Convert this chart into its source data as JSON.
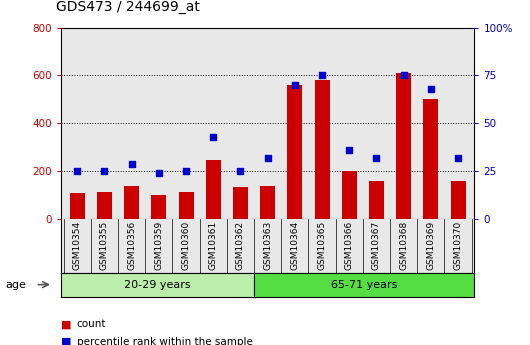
{
  "title": "GDS473 / 244699_at",
  "samples": [
    "GSM10354",
    "GSM10355",
    "GSM10356",
    "GSM10359",
    "GSM10360",
    "GSM10361",
    "GSM10362",
    "GSM10363",
    "GSM10364",
    "GSM10365",
    "GSM10366",
    "GSM10367",
    "GSM10368",
    "GSM10369",
    "GSM10370"
  ],
  "counts": [
    110,
    115,
    140,
    100,
    115,
    245,
    135,
    140,
    560,
    580,
    200,
    160,
    610,
    500,
    160
  ],
  "percentiles": [
    25,
    25,
    29,
    24,
    25,
    43,
    25,
    32,
    70,
    75,
    36,
    32,
    75,
    68,
    32
  ],
  "group1_label": "20-29 years",
  "group2_label": "65-71 years",
  "group1_count": 7,
  "group2_count": 8,
  "left_ylim": [
    0,
    800
  ],
  "right_ylim": [
    0,
    100
  ],
  "left_yticks": [
    0,
    200,
    400,
    600,
    800
  ],
  "right_yticks": [
    0,
    25,
    50,
    75,
    100
  ],
  "bar_color": "#cc0000",
  "dot_color": "#0000cc",
  "age_label": "age",
  "legend_count": "count",
  "legend_percentile": "percentile rank within the sample",
  "group1_bg": "#bbeeaa",
  "group2_bg": "#55dd44",
  "axes_bg": "#e8e8e8",
  "grid_color": "#000000",
  "left_tick_color": "#cc0000",
  "right_tick_color": "#0000cc"
}
